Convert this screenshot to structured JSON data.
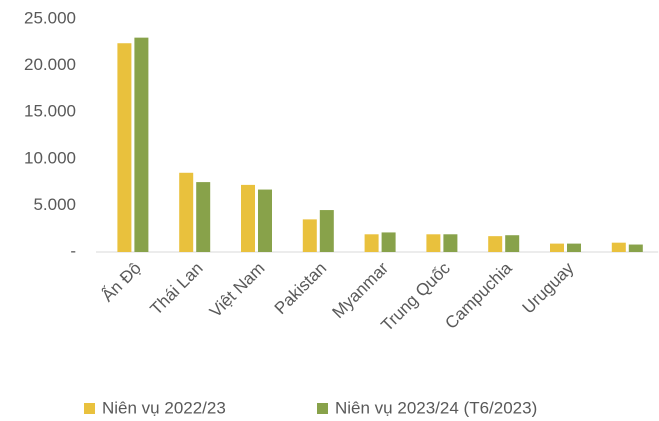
{
  "chart_data": {
    "type": "bar",
    "categories": [
      "Ấn Độ",
      "Thái Lan",
      "Việt Nam",
      "Pakistan",
      "Myanmar",
      "Trung Quốc",
      "Campuchia",
      "Uruguay",
      null
    ],
    "series": [
      {
        "name": "Niên vụ 2022/23",
        "color": "#e9c13d",
        "values": [
          22400,
          8500,
          7200,
          3500,
          1900,
          1900,
          1700,
          900,
          1000
        ]
      },
      {
        "name": "Niên vụ 2023/24 (T6/2023)",
        "color": "#88a24a",
        "values": [
          23000,
          7500,
          6700,
          4500,
          2100,
          1900,
          1800,
          900,
          800
        ]
      }
    ],
    "ylim": [
      0,
      25000
    ],
    "yticks": [
      {
        "value": 0,
        "label": "-"
      },
      {
        "value": 5000,
        "label": "5.000"
      },
      {
        "value": 10000,
        "label": "10.000"
      },
      {
        "value": 15000,
        "label": "15.000"
      },
      {
        "value": 20000,
        "label": "20.000"
      },
      {
        "value": 25000,
        "label": "25.000"
      }
    ],
    "legend": "bottom"
  }
}
